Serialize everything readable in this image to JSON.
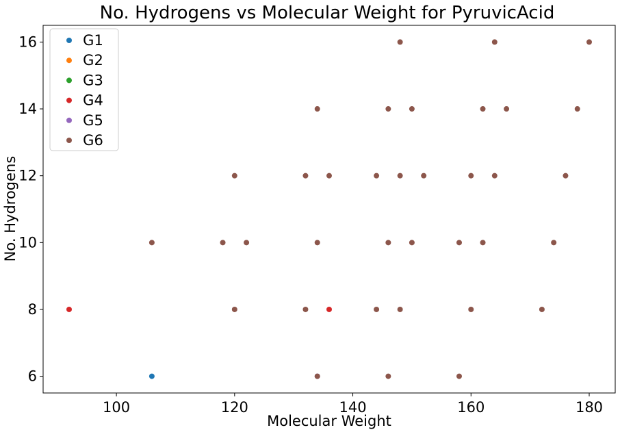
{
  "chart_data": {
    "type": "scatter",
    "title": "No. Hydrogens vs Molecular Weight for PyruvicAcid",
    "xlabel": "Molecular Weight",
    "ylabel": "No. Hydrogens",
    "xlim": [
      87.6,
      184.4
    ],
    "ylim": [
      5.5,
      16.5
    ],
    "xticks": [
      100,
      120,
      140,
      160,
      180
    ],
    "yticks": [
      6,
      8,
      10,
      12,
      14,
      16
    ],
    "grid": false,
    "legend_position": "top-left",
    "series": [
      {
        "name": "G1",
        "color": "#1f77b4",
        "points": [
          [
            106,
            6
          ]
        ]
      },
      {
        "name": "G2",
        "color": "#ff7f0e",
        "points": []
      },
      {
        "name": "G3",
        "color": "#2ca02c",
        "points": []
      },
      {
        "name": "G4",
        "color": "#d62728",
        "points": [
          [
            92,
            8
          ],
          [
            136,
            8
          ]
        ]
      },
      {
        "name": "G5",
        "color": "#9467bd",
        "points": [
          [
            134,
            6
          ]
        ]
      },
      {
        "name": "G6",
        "color": "#8c564b",
        "points": [
          [
            148,
            16
          ],
          [
            164,
            16
          ],
          [
            180,
            16
          ],
          [
            134,
            14
          ],
          [
            146,
            14
          ],
          [
            150,
            14
          ],
          [
            162,
            14
          ],
          [
            166,
            14
          ],
          [
            178,
            14
          ],
          [
            120,
            12
          ],
          [
            132,
            12
          ],
          [
            136,
            12
          ],
          [
            144,
            12
          ],
          [
            148,
            12
          ],
          [
            152,
            12
          ],
          [
            160,
            12
          ],
          [
            164,
            12
          ],
          [
            176,
            12
          ],
          [
            106,
            10
          ],
          [
            118,
            10
          ],
          [
            122,
            10
          ],
          [
            134,
            10
          ],
          [
            146,
            10
          ],
          [
            150,
            10
          ],
          [
            158,
            10
          ],
          [
            162,
            10
          ],
          [
            174,
            10
          ],
          [
            120,
            8
          ],
          [
            132,
            8
          ],
          [
            144,
            8
          ],
          [
            148,
            8
          ],
          [
            160,
            8
          ],
          [
            172,
            8
          ],
          [
            134,
            6
          ],
          [
            146,
            6
          ],
          [
            158,
            6
          ]
        ]
      }
    ]
  }
}
